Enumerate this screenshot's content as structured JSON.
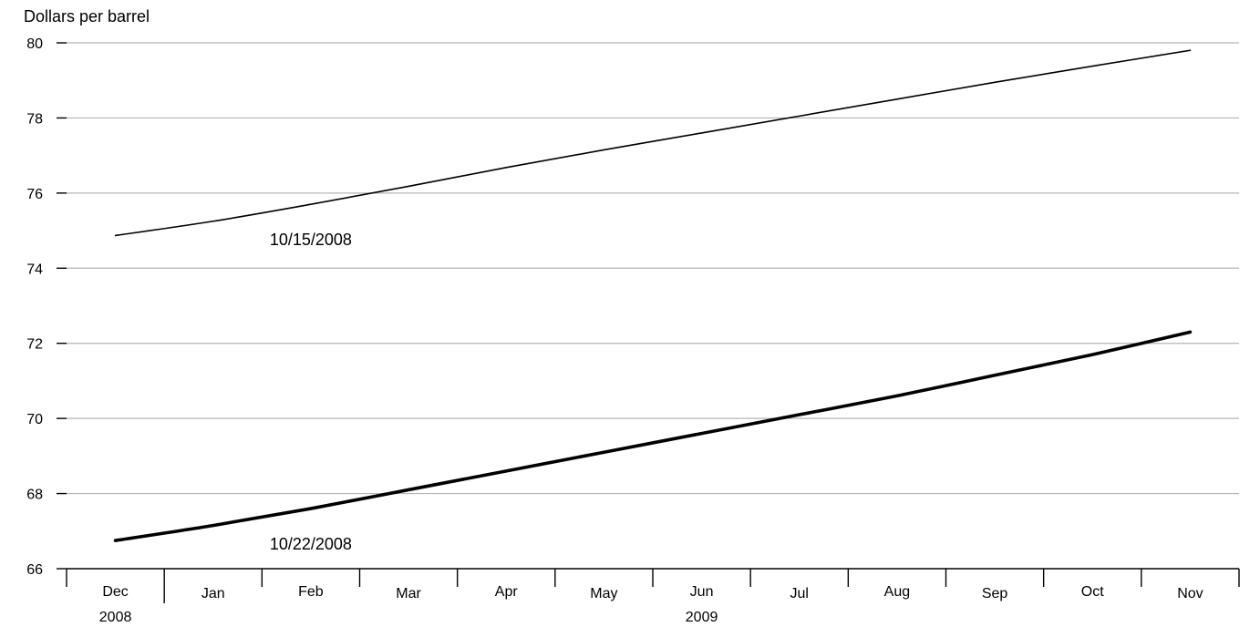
{
  "chart_data": {
    "type": "line",
    "ylabel": "Dollars per barrel",
    "ylim": [
      66,
      80
    ],
    "yticks": [
      66,
      68,
      70,
      72,
      74,
      76,
      78,
      80
    ],
    "grid": true,
    "categories": [
      "Dec",
      "Jan",
      "Feb",
      "Mar",
      "Apr",
      "May",
      "Jun",
      "Jul",
      "Aug",
      "Sep",
      "Oct",
      "Nov"
    ],
    "year_labels": [
      {
        "label": "2008",
        "category": "Dec"
      },
      {
        "label": "2009",
        "category": "Jun"
      }
    ],
    "series": [
      {
        "name": "10/15/2008",
        "values": [
          74.87,
          75.25,
          75.7,
          76.18,
          76.68,
          77.15,
          77.6,
          78.05,
          78.5,
          78.95,
          79.38,
          79.8
        ],
        "label_at": "Feb",
        "weight": "thin"
      },
      {
        "name": "10/22/2008",
        "values": [
          66.75,
          67.15,
          67.6,
          68.1,
          68.6,
          69.1,
          69.6,
          70.1,
          70.6,
          71.15,
          71.7,
          72.3
        ],
        "label_at": "Feb",
        "weight": "thick"
      }
    ]
  }
}
